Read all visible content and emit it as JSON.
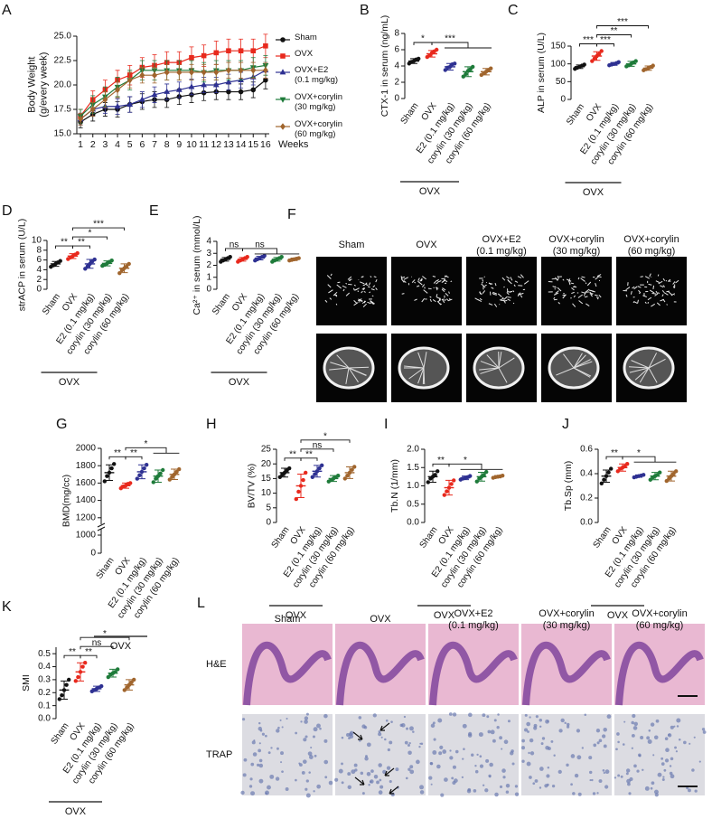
{
  "chart_data": [
    {
      "type": "line",
      "panel": "A",
      "ylabel": "Body Weight\n(g/every week)",
      "xlabel": "Weeks",
      "x": [
        1,
        2,
        3,
        4,
        5,
        6,
        7,
        8,
        9,
        10,
        11,
        12,
        13,
        14,
        15,
        16
      ],
      "xlim": [
        0.7,
        16.3
      ],
      "xticks": [
        1,
        2,
        3,
        4,
        5,
        6,
        7,
        8,
        9,
        10,
        11,
        12,
        13,
        14,
        15,
        16
      ],
      "ylim": [
        15,
        25
      ],
      "yticks": [
        {
          "value": 15,
          "label": "15.0"
        },
        17.5,
        {
          "value": 20,
          "label": "20.0"
        },
        22.5,
        {
          "value": 25,
          "label": "25.0"
        }
      ],
      "series": [
        {
          "name": "Sham",
          "color": "#111111",
          "marker": "circle",
          "values": [
            16.2,
            17.0,
            17.5,
            17.5,
            18.0,
            18.3,
            18.5,
            18.5,
            18.8,
            19.0,
            19.2,
            19.3,
            19.3,
            19.3,
            19.5,
            20.5
          ],
          "errors": [
            0.6,
            0.7,
            0.7,
            0.8,
            0.8,
            0.8,
            0.8,
            0.8,
            0.8,
            0.8,
            0.8,
            0.8,
            0.8,
            0.8,
            0.8,
            0.9
          ]
        },
        {
          "name": "OVX",
          "color": "#e8291d",
          "marker": "square",
          "values": [
            16.8,
            18.5,
            19.5,
            20.5,
            21.0,
            21.8,
            22.0,
            22.3,
            22.3,
            22.8,
            23.0,
            23.3,
            23.5,
            23.5,
            23.5,
            24.0
          ],
          "errors": [
            0.7,
            0.9,
            1.0,
            1.0,
            1.0,
            1.0,
            1.1,
            1.1,
            1.1,
            1.1,
            1.1,
            1.2,
            1.2,
            1.2,
            1.2,
            1.2
          ]
        },
        {
          "name": "OVX+E2\n(0.1 mg/kg)",
          "color": "#2e3192",
          "marker": "triangle",
          "values": [
            16.5,
            17.5,
            17.8,
            17.8,
            18.0,
            18.5,
            19.0,
            19.3,
            19.5,
            19.8,
            20.0,
            20.0,
            20.3,
            20.5,
            20.8,
            21.5
          ],
          "errors": [
            0.6,
            0.7,
            0.7,
            0.8,
            0.8,
            0.8,
            0.8,
            0.8,
            0.8,
            0.8,
            0.8,
            0.8,
            0.8,
            0.8,
            0.8,
            0.8
          ]
        },
        {
          "name": "OVX+corylin\n(30 mg/kg)",
          "color": "#1e7b3a",
          "marker": "triangle-down",
          "values": [
            16.8,
            18.0,
            18.8,
            19.8,
            20.5,
            21.5,
            21.5,
            21.5,
            21.5,
            21.5,
            21.3,
            21.5,
            21.5,
            21.5,
            21.8,
            22.0
          ],
          "errors": [
            0.7,
            0.9,
            1.0,
            1.0,
            1.0,
            1.0,
            1.0,
            1.0,
            1.0,
            1.0,
            1.0,
            1.0,
            1.0,
            1.0,
            1.0,
            1.0
          ]
        },
        {
          "name": "OVX+corylin\n(60 mg/kg)",
          "color": "#a0652d",
          "marker": "diamond",
          "values": [
            16.5,
            17.5,
            18.5,
            19.5,
            20.5,
            21.0,
            21.0,
            21.3,
            21.3,
            21.3,
            21.3,
            21.3,
            21.5,
            21.5,
            21.5,
            21.5
          ],
          "errors": [
            0.6,
            0.7,
            0.8,
            0.8,
            0.8,
            0.8,
            0.8,
            0.8,
            0.8,
            0.8,
            0.8,
            0.8,
            0.8,
            0.8,
            0.8,
            0.8
          ]
        }
      ]
    },
    {
      "type": "dot",
      "panel": "B",
      "ylabel": "CTX-1 in serum (ng/mL)",
      "group_label": "OVX",
      "categories": [
        "Sham",
        "OVX",
        "E2 (0.1 mg/kg)",
        "corylin (30 mg/kg)",
        "corylin (60 mg/kg)"
      ],
      "colors": [
        "#111111",
        "#e8291d",
        "#2e3192",
        "#1e7b3a",
        "#a0652d"
      ],
      "ylim": [
        0,
        8
      ],
      "yticks": [
        0,
        2,
        4,
        6,
        8
      ],
      "values": [
        4.6,
        5.5,
        3.9,
        3.3,
        3.3
      ],
      "errors": [
        0.3,
        0.4,
        0.4,
        0.6,
        0.4
      ],
      "points": [
        [
          4.3,
          4.5,
          4.6,
          4.8,
          4.9
        ],
        [
          5.1,
          5.3,
          5.6,
          5.8,
          6.0
        ],
        [
          3.5,
          3.8,
          3.9,
          4.2,
          4.3
        ],
        [
          2.7,
          3.0,
          3.4,
          3.6,
          3.9
        ],
        [
          2.9,
          3.1,
          3.3,
          3.5,
          3.7
        ]
      ],
      "comparisons": [
        {
          "label": "*",
          "from": 0,
          "to": 1
        },
        {
          "label": "***",
          "from": 1,
          "to": [
            2,
            4
          ]
        }
      ]
    },
    {
      "type": "dot",
      "panel": "C",
      "ylabel": "ALP in serum (U/L)",
      "group_label": "OVX",
      "categories": [
        "Sham",
        "OVX",
        "E2 (0.1 mg/kg)",
        "corylin (30 mg/kg)",
        "corylin (60 mg/kg)"
      ],
      "colors": [
        "#111111",
        "#e8291d",
        "#2e3192",
        "#1e7b3a",
        "#a0652d"
      ],
      "ylim": [
        0,
        150
      ],
      "yticks": [
        0,
        50,
        100,
        150
      ],
      "values": [
        92,
        122,
        100,
        100,
        88
      ],
      "errors": [
        5,
        12,
        4,
        7,
        6
      ],
      "points": [
        [
          86,
          89,
          92,
          95,
          98
        ],
        [
          108,
          115,
          122,
          128,
          136
        ],
        [
          96,
          98,
          100,
          102,
          105
        ],
        [
          93,
          96,
          100,
          104,
          108
        ],
        [
          82,
          85,
          88,
          91,
          95
        ]
      ],
      "comparisons": [
        {
          "label": "***",
          "from": 0,
          "to": 1
        },
        {
          "label": "***",
          "from": 1,
          "to": 2
        },
        {
          "label": "**",
          "from": 1,
          "to": 3
        },
        {
          "label": "***",
          "from": 1,
          "to": 4
        }
      ]
    },
    {
      "type": "dot",
      "panel": "D",
      "ylabel": "strACP in serum (U/L)",
      "group_label": "OVX",
      "categories": [
        "Sham",
        "OVX",
        "E2 (0.1 mg/kg)",
        "corylin (30 mg/kg)",
        "corylin (60 mg/kg)"
      ],
      "colors": [
        "#111111",
        "#e8291d",
        "#2e3192",
        "#1e7b3a",
        "#a0652d"
      ],
      "ylim": [
        0,
        10
      ],
      "yticks": [
        0,
        2,
        4,
        6,
        8,
        10
      ],
      "values": [
        5.2,
        6.8,
        5.2,
        5.3,
        4.3
      ],
      "errors": [
        0.5,
        0.5,
        0.9,
        0.5,
        0.9
      ],
      "points": [
        [
          4.6,
          4.9,
          5.2,
          5.5,
          5.8
        ],
        [
          6.2,
          6.5,
          6.8,
          7.1,
          7.4
        ],
        [
          4.2,
          4.7,
          5.2,
          5.7,
          6.1
        ],
        [
          4.8,
          5.0,
          5.3,
          5.6,
          5.9
        ],
        [
          3.3,
          3.9,
          4.3,
          4.7,
          5.2
        ]
      ],
      "comparisons": [
        {
          "label": "**",
          "from": 0,
          "to": 1
        },
        {
          "label": "**",
          "from": 1,
          "to": 2
        },
        {
          "label": "*",
          "from": 1,
          "to": 3
        },
        {
          "label": "***",
          "from": 1,
          "to": 4
        }
      ]
    },
    {
      "type": "dot",
      "panel": "E",
      "ylabel": "Ca²⁺ in serum (mmol/L)",
      "group_label": "OVX",
      "categories": [
        "Sham",
        "OVX",
        "E2 (0.1 mg/kg)",
        "corylin (30 mg/kg)",
        "corylin (60 mg/kg)"
      ],
      "colors": [
        "#111111",
        "#e8291d",
        "#2e3192",
        "#1e7b3a",
        "#a0652d"
      ],
      "ylim": [
        0,
        4
      ],
      "yticks": [
        0,
        1,
        2,
        3,
        4
      ],
      "values": [
        2.5,
        2.5,
        2.6,
        2.5,
        2.5
      ],
      "errors": [
        0.15,
        0.15,
        0.15,
        0.15,
        0.1
      ],
      "points": [
        [
          2.3,
          2.4,
          2.5,
          2.6,
          2.7
        ],
        [
          2.3,
          2.4,
          2.5,
          2.6,
          2.7
        ],
        [
          2.4,
          2.5,
          2.6,
          2.7,
          2.8
        ],
        [
          2.3,
          2.4,
          2.5,
          2.6,
          2.7
        ],
        [
          2.4,
          2.45,
          2.5,
          2.55,
          2.6
        ]
      ],
      "comparisons": [
        {
          "label": "ns",
          "from": 0,
          "to": 1
        },
        {
          "label": "ns",
          "from": 1,
          "to": [
            2,
            4
          ]
        }
      ]
    },
    {
      "type": "dot",
      "panel": "G",
      "ylabel": "BMD(mg/cc)",
      "group_label": "OVX",
      "categories": [
        "Sham",
        "OVX",
        "E2 (0.1 mg/kg)",
        "corylin (30 mg/kg)",
        "corylin (60 mg/kg)"
      ],
      "colors": [
        "#111111",
        "#e8291d",
        "#2e3192",
        "#1e7b3a",
        "#a0652d"
      ],
      "ylim": [
        0,
        2000
      ],
      "y_break": 1000,
      "yticks": [
        0,
        1000,
        1200,
        1400,
        1600,
        1800,
        2000
      ],
      "values": [
        1720,
        1570,
        1730,
        1680,
        1700
      ],
      "errors": [
        90,
        30,
        80,
        70,
        60
      ],
      "points": [
        [
          1620,
          1680,
          1720,
          1770,
          1820
        ],
        [
          1540,
          1560,
          1570,
          1590,
          1600
        ],
        [
          1650,
          1690,
          1730,
          1770,
          1810
        ],
        [
          1610,
          1650,
          1680,
          1710,
          1750
        ],
        [
          1640,
          1670,
          1700,
          1730,
          1760
        ]
      ],
      "comparisons": [
        {
          "label": "**",
          "from": 0,
          "to": 1
        },
        {
          "label": "**",
          "from": 1,
          "to": 2
        },
        {
          "label": "*",
          "from": 1,
          "to": [
            3,
            4
          ]
        }
      ]
    },
    {
      "type": "dot",
      "panel": "H",
      "ylabel": "BV/TV (%)",
      "group_label": "OVX",
      "categories": [
        "Sham",
        "OVX",
        "E2 (0.1 mg/kg)",
        "corylin (30 mg/kg)",
        "corylin (60 mg/kg)"
      ],
      "colors": [
        "#111111",
        "#e8291d",
        "#2e3192",
        "#1e7b3a",
        "#a0652d"
      ],
      "ylim": [
        0,
        25
      ],
      "yticks": [
        0,
        5,
        10,
        15,
        20,
        25
      ],
      "values": [
        17,
        12.5,
        17.5,
        15,
        17
      ],
      "errors": [
        1.5,
        4,
        2,
        1,
        2
      ],
      "points": [
        [
          15.5,
          16.3,
          17,
          17.8,
          18.5
        ],
        [
          8,
          10.5,
          12.5,
          14.5,
          17
        ],
        [
          15.5,
          16.5,
          17.5,
          18.5,
          19.5
        ],
        [
          14,
          14.5,
          15,
          15.5,
          16
        ],
        [
          15,
          16,
          17,
          18,
          19
        ]
      ],
      "comparisons": [
        {
          "label": "**",
          "from": 0,
          "to": 1
        },
        {
          "label": "**",
          "from": 1,
          "to": 2
        },
        {
          "label": "ns",
          "from": 1,
          "to": 3
        },
        {
          "label": "*",
          "from": 1,
          "to": 4
        }
      ]
    },
    {
      "type": "dot",
      "panel": "I",
      "ylabel": "Tb.N (1/mm)",
      "group_label": "OVX",
      "categories": [
        "Sham",
        "OVX",
        "E2 (0.1 mg/kg)",
        "corylin (30 mg/kg)",
        "corylin (60 mg/kg)"
      ],
      "colors": [
        "#111111",
        "#e8291d",
        "#2e3192",
        "#1e7b3a",
        "#a0652d"
      ],
      "ylim": [
        0,
        2
      ],
      "yticks": [
        {
          "value": 0,
          "label": "0.0"
        },
        0.5,
        {
          "value": 1,
          "label": "1.0"
        },
        1.5,
        {
          "value": 2,
          "label": "2.0"
        }
      ],
      "values": [
        1.25,
        0.95,
        1.22,
        1.25,
        1.25
      ],
      "errors": [
        0.15,
        0.2,
        0.05,
        0.12,
        0.03
      ],
      "points": [
        [
          1.1,
          1.2,
          1.25,
          1.3,
          1.4
        ],
        [
          0.75,
          0.85,
          0.95,
          1.05,
          1.15
        ],
        [
          1.17,
          1.2,
          1.22,
          1.24,
          1.27
        ],
        [
          1.12,
          1.2,
          1.25,
          1.3,
          1.38
        ],
        [
          1.22,
          1.24,
          1.25,
          1.26,
          1.28
        ]
      ],
      "comparisons": [
        {
          "label": "**",
          "from": 0,
          "to": 1
        },
        {
          "label": "*",
          "from": 1,
          "to": [
            2,
            4
          ]
        }
      ]
    },
    {
      "type": "dot",
      "panel": "J",
      "ylabel": "Tb.Sp (mm)",
      "group_label": "OVX",
      "categories": [
        "Sham",
        "OVX",
        "E2 (0.1 mg/kg)",
        "corylin (30 mg/kg)",
        "corylin (60 mg/kg)"
      ],
      "colors": [
        "#111111",
        "#e8291d",
        "#2e3192",
        "#1e7b3a",
        "#a0652d"
      ],
      "ylim": [
        0,
        0.6
      ],
      "yticks": [
        {
          "value": 0,
          "label": "0.0"
        },
        0.2,
        0.4,
        0.6
      ],
      "values": [
        0.38,
        0.45,
        0.38,
        0.38,
        0.38
      ],
      "errors": [
        0.05,
        0.03,
        0.01,
        0.03,
        0.04
      ],
      "points": [
        [
          0.32,
          0.35,
          0.38,
          0.41,
          0.44
        ],
        [
          0.42,
          0.44,
          0.45,
          0.46,
          0.48
        ],
        [
          0.37,
          0.375,
          0.38,
          0.385,
          0.39
        ],
        [
          0.35,
          0.37,
          0.38,
          0.39,
          0.41
        ],
        [
          0.34,
          0.36,
          0.38,
          0.4,
          0.42
        ]
      ],
      "comparisons": [
        {
          "label": "**",
          "from": 0,
          "to": 1
        },
        {
          "label": "*",
          "from": 1,
          "to": [
            2,
            4
          ]
        }
      ]
    },
    {
      "type": "dot",
      "panel": "K",
      "ylabel": "SMI",
      "group_label": "OVX",
      "categories": [
        "Sham",
        "OVX",
        "E2 (0.1 mg/kg)",
        "corylin (30 mg/kg)",
        "corylin (60 mg/kg)"
      ],
      "colors": [
        "#111111",
        "#e8291d",
        "#2e3192",
        "#1e7b3a",
        "#a0652d"
      ],
      "ylim": [
        0,
        0.55
      ],
      "yticks": [
        {
          "value": 0,
          "label": "0.0"
        },
        0.1,
        0.2,
        0.3,
        0.4,
        0.5
      ],
      "values": [
        0.22,
        0.36,
        0.23,
        0.35,
        0.26
      ],
      "errors": [
        0.07,
        0.07,
        0.02,
        0.03,
        0.04
      ],
      "points": [
        [
          0.15,
          0.18,
          0.22,
          0.26,
          0.3
        ],
        [
          0.29,
          0.32,
          0.36,
          0.4,
          0.43
        ],
        [
          0.21,
          0.22,
          0.23,
          0.24,
          0.25
        ],
        [
          0.32,
          0.34,
          0.35,
          0.36,
          0.38
        ],
        [
          0.22,
          0.24,
          0.26,
          0.28,
          0.3
        ]
      ],
      "comparisons": [
        {
          "label": "**",
          "from": 0,
          "to": 1
        },
        {
          "label": "**",
          "from": 1,
          "to": 2
        },
        {
          "label": "ns",
          "from": 1,
          "to": 3
        },
        {
          "label": "*",
          "from": 1,
          "to": 4
        }
      ]
    }
  ],
  "image_panels": [
    {
      "panel": "F",
      "columns": [
        "Sham",
        "OVX",
        "OVX+E2\n(0.1 mg/kg)",
        "OVX+corylin\n(30 mg/kg)",
        "OVX+corylin\n(60 mg/kg)"
      ]
    },
    {
      "panel": "L",
      "columns": [
        "Sham",
        "OVX",
        "OVX+E2\n(0.1 mg/kg)",
        "OVX+corylin\n(30 mg/kg)",
        "OVX+corylin\n(60 mg/kg)"
      ],
      "rows": [
        "H&E",
        "TRAP"
      ]
    }
  ]
}
